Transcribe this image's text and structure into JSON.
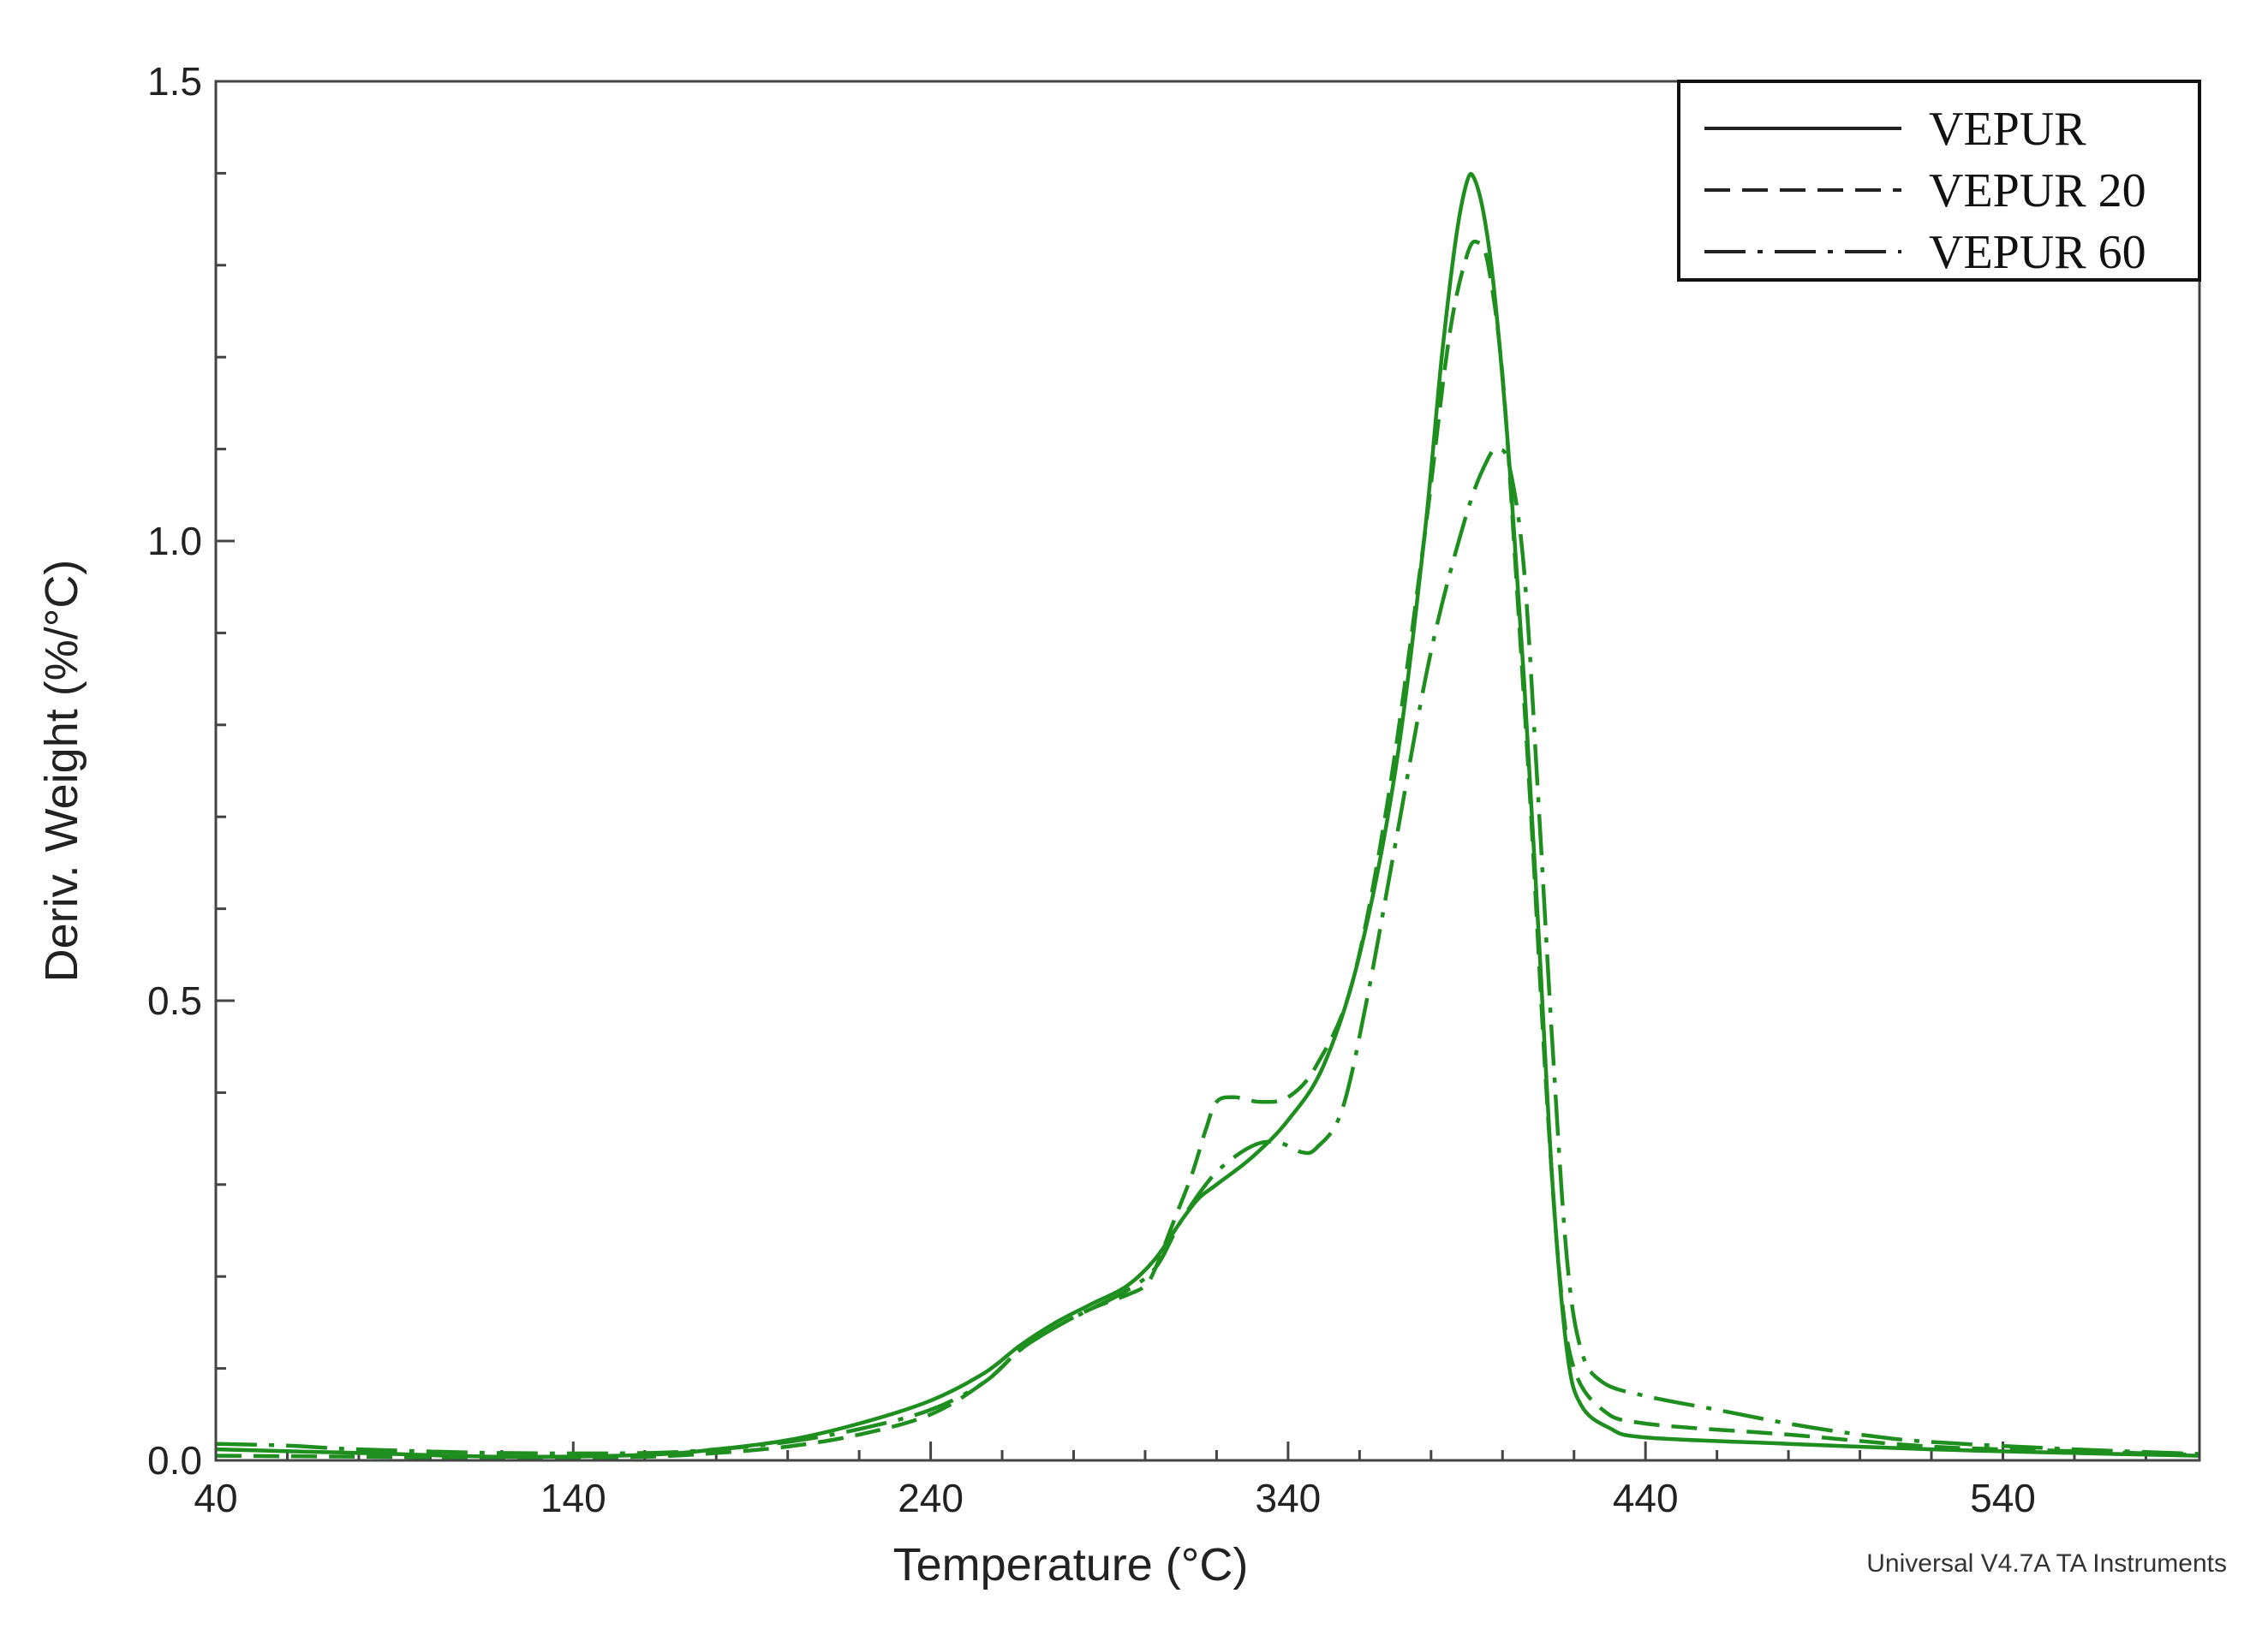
{
  "chart_data": {
    "type": "line",
    "title": "",
    "xlabel": "Temperature (°C)",
    "ylabel": "Deriv. Weight (%/°C)",
    "xlim": [
      40,
      595
    ],
    "ylim": [
      0.0,
      1.5
    ],
    "x_ticks": [
      40,
      140,
      240,
      340,
      440,
      540
    ],
    "x_tick_labels": [
      "40",
      "140",
      "240",
      "340",
      "440",
      "540"
    ],
    "y_ticks": [
      0.0,
      0.5,
      1.0,
      1.5
    ],
    "y_tick_labels": [
      "0.0",
      "0.5",
      "1.0",
      "1.5"
    ],
    "grid": false,
    "legend_position": "top-right",
    "credit": "Universal V4.7A TA Instruments",
    "line_color": "#1e8f1e",
    "series": [
      {
        "name": "VEPUR",
        "style": "solid",
        "points": [
          [
            40,
            0.012
          ],
          [
            80,
            0.008
          ],
          [
            120,
            0.004
          ],
          [
            160,
            0.006
          ],
          [
            180,
            0.012
          ],
          [
            200,
            0.022
          ],
          [
            220,
            0.04
          ],
          [
            240,
            0.065
          ],
          [
            255,
            0.095
          ],
          [
            265,
            0.125
          ],
          [
            275,
            0.15
          ],
          [
            285,
            0.17
          ],
          [
            295,
            0.19
          ],
          [
            303,
            0.22
          ],
          [
            310,
            0.26
          ],
          [
            315,
            0.285
          ],
          [
            320,
            0.3
          ],
          [
            330,
            0.33
          ],
          [
            340,
            0.37
          ],
          [
            350,
            0.43
          ],
          [
            360,
            0.55
          ],
          [
            370,
            0.75
          ],
          [
            378,
            1.0
          ],
          [
            383,
            1.2
          ],
          [
            387,
            1.33
          ],
          [
            390,
            1.39
          ],
          [
            392,
            1.395
          ],
          [
            395,
            1.35
          ],
          [
            398,
            1.26
          ],
          [
            402,
            1.08
          ],
          [
            406,
            0.85
          ],
          [
            410,
            0.58
          ],
          [
            414,
            0.3
          ],
          [
            418,
            0.12
          ],
          [
            422,
            0.06
          ],
          [
            430,
            0.035
          ],
          [
            440,
            0.025
          ],
          [
            480,
            0.018
          ],
          [
            520,
            0.012
          ],
          [
            560,
            0.008
          ],
          [
            595,
            0.005
          ]
        ]
      },
      {
        "name": "VEPUR 20",
        "style": "dashed",
        "points": [
          [
            40,
            0.005
          ],
          [
            80,
            0.004
          ],
          [
            120,
            0.003
          ],
          [
            160,
            0.004
          ],
          [
            180,
            0.008
          ],
          [
            200,
            0.015
          ],
          [
            220,
            0.028
          ],
          [
            240,
            0.05
          ],
          [
            255,
            0.085
          ],
          [
            265,
            0.12
          ],
          [
            275,
            0.145
          ],
          [
            285,
            0.165
          ],
          [
            295,
            0.18
          ],
          [
            300,
            0.19
          ],
          [
            303,
            0.21
          ],
          [
            308,
            0.26
          ],
          [
            313,
            0.31
          ],
          [
            317,
            0.36
          ],
          [
            320,
            0.39
          ],
          [
            325,
            0.395
          ],
          [
            332,
            0.39
          ],
          [
            340,
            0.395
          ],
          [
            348,
            0.43
          ],
          [
            358,
            0.52
          ],
          [
            368,
            0.72
          ],
          [
            378,
            1.0
          ],
          [
            385,
            1.22
          ],
          [
            390,
            1.31
          ],
          [
            393,
            1.325
          ],
          [
            396,
            1.3
          ],
          [
            400,
            1.18
          ],
          [
            404,
            0.95
          ],
          [
            408,
            0.7
          ],
          [
            412,
            0.42
          ],
          [
            416,
            0.2
          ],
          [
            420,
            0.1
          ],
          [
            428,
            0.055
          ],
          [
            440,
            0.04
          ],
          [
            480,
            0.028
          ],
          [
            520,
            0.015
          ],
          [
            560,
            0.01
          ],
          [
            595,
            0.006
          ]
        ]
      },
      {
        "name": "VEPUR 60",
        "style": "dashdot",
        "points": [
          [
            40,
            0.018
          ],
          [
            60,
            0.016
          ],
          [
            80,
            0.012
          ],
          [
            120,
            0.008
          ],
          [
            160,
            0.008
          ],
          [
            180,
            0.012
          ],
          [
            200,
            0.02
          ],
          [
            220,
            0.034
          ],
          [
            240,
            0.055
          ],
          [
            255,
            0.085
          ],
          [
            265,
            0.12
          ],
          [
            275,
            0.145
          ],
          [
            285,
            0.165
          ],
          [
            295,
            0.185
          ],
          [
            303,
            0.21
          ],
          [
            310,
            0.26
          ],
          [
            318,
            0.305
          ],
          [
            325,
            0.33
          ],
          [
            332,
            0.345
          ],
          [
            338,
            0.345
          ],
          [
            344,
            0.335
          ],
          [
            348,
            0.34
          ],
          [
            355,
            0.38
          ],
          [
            362,
            0.5
          ],
          [
            370,
            0.67
          ],
          [
            380,
            0.88
          ],
          [
            390,
            1.03
          ],
          [
            396,
            1.09
          ],
          [
            399,
            1.1
          ],
          [
            402,
            1.08
          ],
          [
            406,
            0.97
          ],
          [
            410,
            0.72
          ],
          [
            414,
            0.45
          ],
          [
            418,
            0.22
          ],
          [
            422,
            0.12
          ],
          [
            428,
            0.085
          ],
          [
            440,
            0.07
          ],
          [
            460,
            0.055
          ],
          [
            480,
            0.04
          ],
          [
            500,
            0.028
          ],
          [
            520,
            0.02
          ],
          [
            560,
            0.012
          ],
          [
            595,
            0.007
          ]
        ]
      }
    ]
  }
}
